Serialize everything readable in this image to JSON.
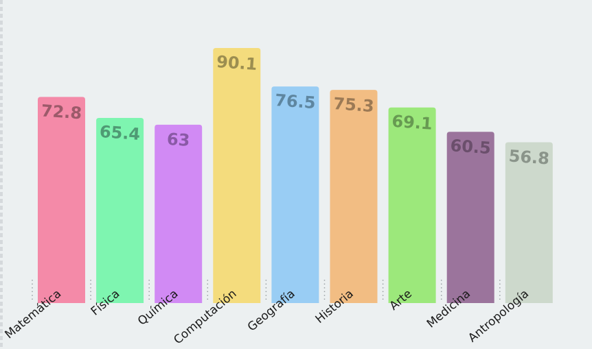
{
  "chart_data": {
    "type": "bar",
    "title": "",
    "xlabel": "",
    "ylabel": "",
    "categories": [
      "Matemática",
      "Física",
      "Química",
      "Computación",
      "Geografía",
      "Historia",
      "Arte",
      "Medicina",
      "Antropología"
    ],
    "values": [
      72.8,
      65.4,
      63,
      90.1,
      76.5,
      75.3,
      69.1,
      60.5,
      56.8
    ],
    "value_labels": [
      "72.8",
      "65.4",
      "63",
      "90.1",
      "76.5",
      "75.3",
      "69.1",
      "60.5",
      "56.8"
    ],
    "ylim": [
      0,
      90.1
    ],
    "grid": false,
    "legend": "none",
    "colors": [
      "#f48aa8",
      "#7ef5b0",
      "#d18af4",
      "#f4dc7d",
      "#99cdf4",
      "#f2bd83",
      "#9ce87b",
      "#9b749c",
      "#cdd9cc"
    ],
    "label_colors": [
      "#9c5a6a",
      "#4f9a74",
      "#8a59a6",
      "#9c8e50",
      "#5e86a0",
      "#9c7a55",
      "#679a52",
      "#6b4f6c",
      "#8a948a"
    ],
    "background": "#ecf0f1",
    "label_color": "#1a1a1a"
  }
}
